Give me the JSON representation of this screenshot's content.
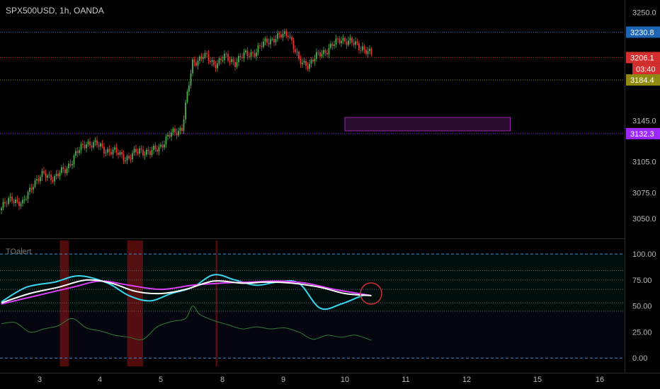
{
  "header": {
    "symbol_title": "SPX500USD, 1h, OANDA"
  },
  "indicator": {
    "title": "TOalert"
  },
  "colors": {
    "bull": "#4caf50",
    "bear": "#e53935",
    "level_blue": "#1e66b5",
    "level_red": "#d32f2f",
    "level_olive": "#8f8a12",
    "level_purple": "#9c27ff",
    "osc_cyan": "#3ad7ef",
    "osc_white": "#ffffff",
    "osc_magenta": "#e040fb",
    "osc_green": "#2e7d32"
  },
  "chart_data": [
    {
      "type": "candlestick",
      "title": "SPX500USD, 1h, OANDA",
      "x_tick_labels": [
        "3",
        "4",
        "5",
        "8",
        "9",
        "10",
        "11",
        "12",
        "15",
        "16"
      ],
      "y_ticks": [
        3050.0,
        3075.0,
        3105.0,
        3145.0,
        3250.0
      ],
      "ylim": [
        3032,
        3262
      ],
      "close_path": [
        [
          0,
          3060
        ],
        [
          6,
          3070
        ],
        [
          12,
          3063
        ],
        [
          18,
          3085
        ],
        [
          24,
          3092
        ],
        [
          30,
          3090
        ],
        [
          36,
          3097
        ],
        [
          42,
          3112
        ],
        [
          48,
          3124
        ],
        [
          54,
          3121
        ],
        [
          60,
          3116
        ],
        [
          66,
          3113
        ],
        [
          72,
          3108
        ],
        [
          78,
          3117
        ],
        [
          84,
          3113
        ],
        [
          90,
          3121
        ],
        [
          96,
          3132
        ],
        [
          102,
          3138
        ],
        [
          108,
          3201
        ],
        [
          114,
          3208
        ],
        [
          120,
          3200
        ],
        [
          126,
          3206
        ],
        [
          132,
          3202
        ],
        [
          138,
          3209
        ],
        [
          144,
          3212
        ],
        [
          150,
          3223
        ],
        [
          156,
          3225
        ],
        [
          162,
          3231
        ],
        [
          168,
          3202
        ],
        [
          174,
          3200
        ],
        [
          180,
          3210
        ],
        [
          186,
          3216
        ],
        [
          192,
          3225
        ],
        [
          198,
          3220
        ],
        [
          204,
          3216
        ],
        [
          209,
          3208
        ]
      ],
      "levels": [
        {
          "value": 3230.8,
          "label": "3230.8",
          "color": "level_blue"
        },
        {
          "value": 3206.1,
          "label": "3206.1",
          "color": "level_red",
          "countdown": "03:40"
        },
        {
          "value": 3184.4,
          "label": "3184.4",
          "color": "level_olive"
        },
        {
          "value": 3132.3,
          "label": "3132.3",
          "color": "level_purple"
        }
      ],
      "zone": {
        "price_top": 3148,
        "price_bottom": 3135,
        "x_from": 8.0,
        "x_to": 10.7
      }
    },
    {
      "type": "line",
      "title": "TOalert",
      "y_ticks": [
        0.0,
        25.0,
        50.0,
        75.0,
        100.0
      ],
      "ylim": [
        -8,
        113
      ],
      "series": [
        {
          "color": "osc_cyan",
          "points": [
            [
              0,
              54
            ],
            [
              14,
              68
            ],
            [
              30,
              73
            ],
            [
              44,
              79
            ],
            [
              60,
              72
            ],
            [
              72,
              60
            ],
            [
              84,
              55
            ],
            [
              96,
              62
            ],
            [
              108,
              68
            ],
            [
              120,
              80
            ],
            [
              132,
              75
            ],
            [
              144,
              70
            ],
            [
              156,
              73
            ],
            [
              168,
              72
            ],
            [
              180,
              48
            ],
            [
              192,
              52
            ],
            [
              204,
              60
            ],
            [
              209,
              60
            ]
          ]
        },
        {
          "color": "osc_white",
          "points": [
            [
              0,
              53
            ],
            [
              16,
              62
            ],
            [
              32,
              68
            ],
            [
              48,
              75
            ],
            [
              62,
              72
            ],
            [
              76,
              64
            ],
            [
              90,
              62
            ],
            [
              104,
              66
            ],
            [
              120,
              74
            ],
            [
              136,
              72
            ],
            [
              150,
              73
            ],
            [
              164,
              72
            ],
            [
              180,
              68
            ],
            [
              194,
              62
            ],
            [
              209,
              60
            ]
          ]
        },
        {
          "color": "osc_magenta",
          "points": [
            [
              0,
              52
            ],
            [
              20,
              60
            ],
            [
              40,
              68
            ],
            [
              56,
              74
            ],
            [
              72,
              70
            ],
            [
              90,
              66
            ],
            [
              108,
              70
            ],
            [
              124,
              72
            ],
            [
              140,
              73
            ],
            [
              156,
              74
            ],
            [
              172,
              72
            ],
            [
              188,
              66
            ],
            [
              209,
              60
            ]
          ]
        },
        {
          "color": "osc_green",
          "points": [
            [
              0,
              33
            ],
            [
              8,
              34
            ],
            [
              16,
              25
            ],
            [
              24,
              28
            ],
            [
              32,
              31
            ],
            [
              40,
              38
            ],
            [
              48,
              29
            ],
            [
              56,
              26
            ],
            [
              64,
              22
            ],
            [
              72,
              20
            ],
            [
              80,
              18
            ],
            [
              88,
              30
            ],
            [
              96,
              35
            ],
            [
              104,
              38
            ],
            [
              108,
              50
            ],
            [
              112,
              42
            ],
            [
              120,
              36
            ],
            [
              128,
              32
            ],
            [
              136,
              28
            ],
            [
              144,
              30
            ],
            [
              152,
              28
            ],
            [
              160,
              29
            ],
            [
              168,
              25
            ],
            [
              176,
              18
            ],
            [
              184,
              22
            ],
            [
              192,
              20
            ],
            [
              200,
              22
            ],
            [
              209,
              17
            ]
          ]
        }
      ],
      "levels": [
        100.0,
        84.0,
        75.0,
        66.0,
        53.0,
        45.0,
        0.0
      ],
      "red_bands": [
        [
          33,
          38
        ],
        [
          71,
          72
        ],
        [
          72,
          80
        ],
        [
          121,
          122
        ]
      ],
      "signal_circle": {
        "x": 208,
        "y": 62
      }
    }
  ]
}
